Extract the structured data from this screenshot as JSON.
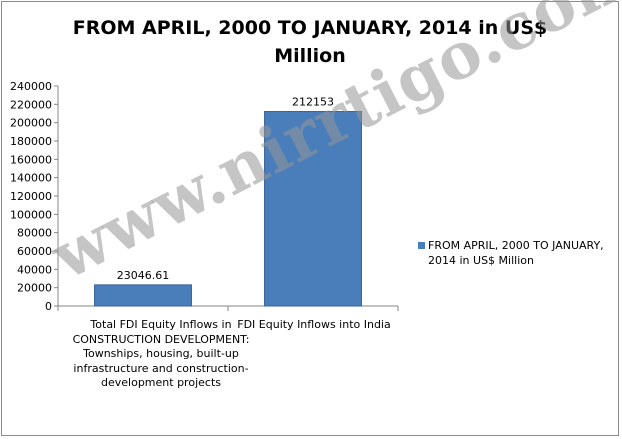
{
  "chart_data": {
    "type": "bar",
    "title": "FROM APRIL, 2000 TO JANUARY, 2014 in US$ Million",
    "categories": [
      "Total FDI Equity Inflows in CONSTRUCTION DEVELOPMENT: Townships, housing, built-up infrastructure and construction-development projects",
      "FDI Equity Inflows into India"
    ],
    "series": [
      {
        "name": "FROM APRIL, 2000 TO JANUARY, 2014 in US$ Million",
        "values": [
          23046.61,
          212153
        ],
        "data_labels": [
          "23046.61",
          "212153"
        ]
      }
    ],
    "ylim": [
      0,
      240000
    ],
    "yticks": [
      0,
      20000,
      40000,
      60000,
      80000,
      100000,
      120000,
      140000,
      160000,
      180000,
      200000,
      220000,
      240000
    ],
    "ytick_labels": [
      "0",
      "20000",
      "40000",
      "60000",
      "80000",
      "100000",
      "120000",
      "140000",
      "160000",
      "180000",
      "200000",
      "220000",
      "240000"
    ],
    "grid": false,
    "legend_position": "right",
    "bar_color": "#4a7ebb",
    "bar_edge_color": "#35609a"
  },
  "watermark_text": "www.nirrtigo.com"
}
